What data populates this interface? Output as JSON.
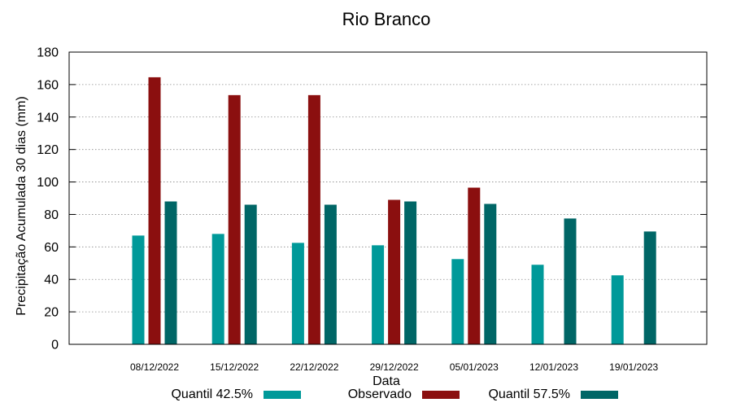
{
  "chart_data": {
    "type": "bar",
    "title": "Rio Branco",
    "xlabel": "Data",
    "ylabel": "Precipitação Acumulada 30 dias (mm)",
    "ylim": [
      0,
      180
    ],
    "yticks": [
      0,
      20,
      40,
      60,
      80,
      100,
      120,
      140,
      160,
      180
    ],
    "grid": true,
    "legend_position": "bottom",
    "categories": [
      "08/12/2022",
      "15/12/2022",
      "22/12/2022",
      "29/12/2022",
      "05/01/2023",
      "12/01/2023",
      "19/01/2023"
    ],
    "series": [
      {
        "name": "Quantil 42.5%",
        "color": "#009999",
        "values": [
          67,
          68,
          62.5,
          61,
          52.5,
          49,
          42.5
        ]
      },
      {
        "name": "Observado",
        "color": "#8b0f0f",
        "values": [
          164.5,
          153.5,
          153.5,
          89,
          96.5,
          null,
          null
        ]
      },
      {
        "name": "Quantil 57.5%",
        "color": "#006666",
        "values": [
          88,
          86,
          86,
          88,
          86.5,
          77.5,
          69.5
        ]
      }
    ]
  }
}
